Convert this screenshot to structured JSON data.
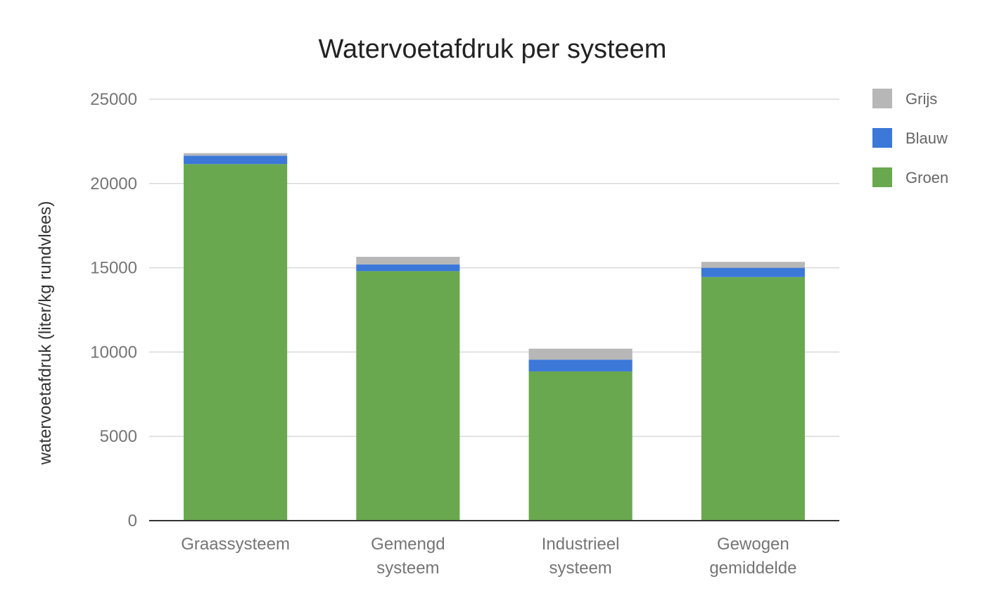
{
  "chart_data": {
    "type": "bar",
    "stacked": true,
    "title": "Watervoetafdruk per systeem",
    "xlabel": "",
    "ylabel": "watervoetafdruk (liter/kg rundvlees)",
    "ylim": [
      0,
      25000
    ],
    "yticks": [
      "0",
      "5000",
      "10000",
      "15000",
      "20000",
      "25000"
    ],
    "ytick_values": [
      0,
      5000,
      10000,
      15000,
      20000,
      25000
    ],
    "grid": true,
    "legend_position": "right",
    "categories": [
      [
        "Graassysteem"
      ],
      [
        "Gemengd",
        "systeem"
      ],
      [
        "Industrieel",
        "systeem"
      ],
      [
        "Gewogen",
        "gemiddelde"
      ]
    ],
    "series": [
      {
        "name": "Groen",
        "color": "#6aa84f",
        "values": [
          21150,
          14800,
          8850,
          14450
        ]
      },
      {
        "name": "Blauw",
        "color": "#3c78d8",
        "values": [
          500,
          400,
          700,
          550
        ]
      },
      {
        "name": "Grijs",
        "color": "#b7b7b7",
        "values": [
          150,
          450,
          650,
          350
        ]
      }
    ],
    "legend_order": [
      "Grijs",
      "Blauw",
      "Groen"
    ]
  }
}
